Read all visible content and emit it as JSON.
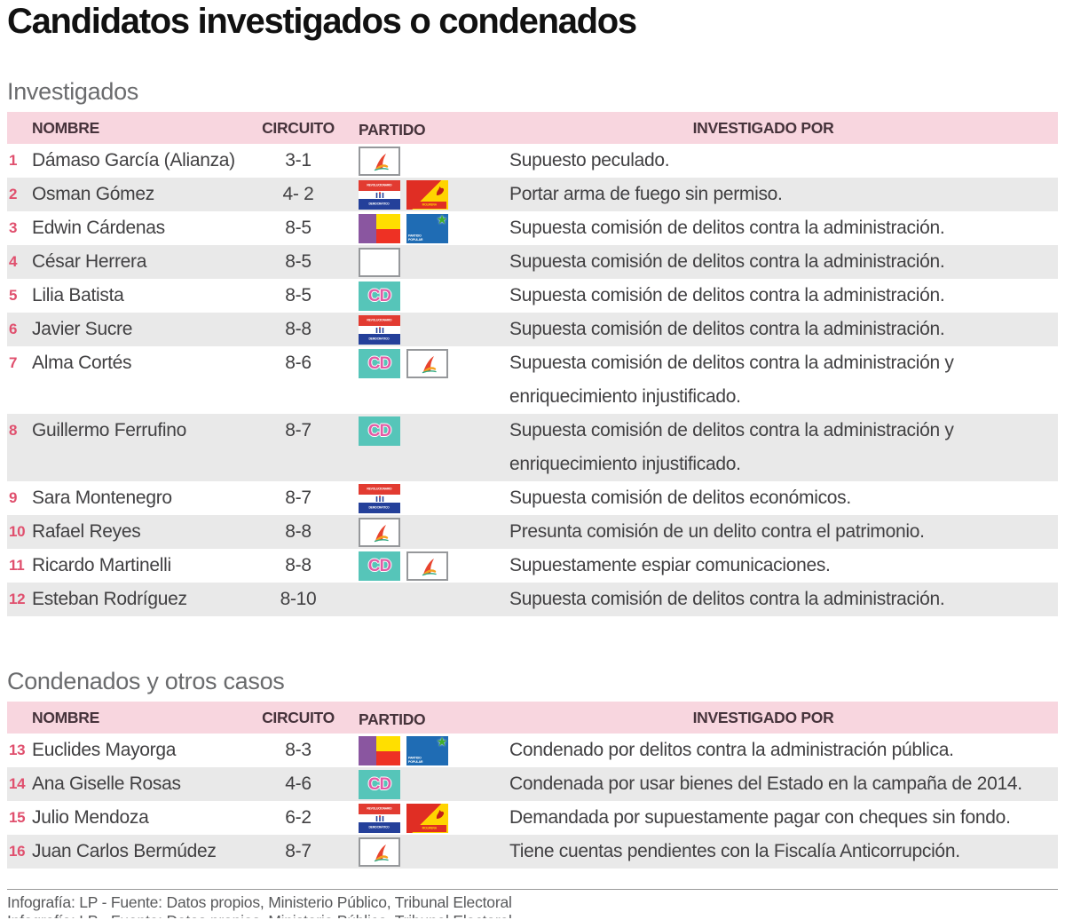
{
  "title": "Candidatos investigados o condenados",
  "columns": [
    "NOMBRE",
    "CIRCUITO",
    "PARTIDO",
    "INVESTIGADO POR"
  ],
  "colors": {
    "header_bar_pink": "#f8d6df",
    "row_stripe_gray": "#e9e9e9",
    "row_number_red": "#e0506e",
    "header_text": "#46333b",
    "body_text": "#414042",
    "section_label_gray": "#6a6b6d",
    "title_black": "#111111",
    "footer_gray": "#58595b"
  },
  "parties": {
    "alianza": {
      "name": "Alianza",
      "bg": "#ffffff",
      "border": "#96989b",
      "figure_red": "#e8432e",
      "figure_orange": "#f5a11f",
      "figure_green": "#2aa87e"
    },
    "prd": {
      "name": "PRD",
      "top_label": "REVOLUCIONARIO",
      "bottom_label": "DEMOCRÁTICO",
      "red": "#e23b31",
      "blue": "#24409a"
    },
    "molirena": {
      "name": "MOLIRENA",
      "label": "MOLIRENA",
      "red": "#e02e24",
      "yellow": "#ffd400",
      "rooster": "#c21f17"
    },
    "cd": {
      "name": "Cambio Democrático",
      "label": "CD",
      "bg": "#56c5b9",
      "letters": "#e35ba4"
    },
    "panamenista": {
      "name": "Panameñista",
      "purple": "#8a56a0",
      "yellow": "#ffdf00",
      "red": "#ee3124"
    },
    "popular": {
      "name": "Partido Popular",
      "label": "PARTIDO POPULAR",
      "bg": "#1f6cb4",
      "star_glyph": "★",
      "star_color": "#3fae2a"
    },
    "blank": {
      "name": "En blanco",
      "bg": "#ffffff",
      "border": "#96989b"
    }
  },
  "sections": [
    {
      "label": "Investigados",
      "rows": [
        {
          "num": "1",
          "name": "Dámaso García (Alianza)",
          "circuit": "3-1",
          "parties": [
            "alianza"
          ],
          "reason": "Supuesto peculado."
        },
        {
          "num": "2",
          "name": "Osman Gómez",
          "circuit": "4- 2",
          "parties": [
            "prd",
            "molirena"
          ],
          "reason": "Portar arma de fuego sin permiso."
        },
        {
          "num": "3",
          "name": "Edwin Cárdenas",
          "circuit": "8-5",
          "parties": [
            "panamenista",
            "popular"
          ],
          "reason": "Supuesta comisión de delitos contra la administración."
        },
        {
          "num": "4",
          "name": "César Herrera",
          "circuit": "8-5",
          "parties": [
            "blank"
          ],
          "reason": "Supuesta comisión de delitos contra la administración."
        },
        {
          "num": "5",
          "name": "Lilia Batista",
          "circuit": "8-5",
          "parties": [
            "cd"
          ],
          "reason": "Supuesta comisión de delitos contra la administración."
        },
        {
          "num": "6",
          "name": "Javier Sucre",
          "circuit": "8-8",
          "parties": [
            "prd"
          ],
          "reason": "Supuesta comisión de delitos contra la administración."
        },
        {
          "num": "7",
          "name": "Alma Cortés",
          "circuit": "8-6",
          "parties": [
            "cd",
            "alianza"
          ],
          "reason": "Supuesta comisión de delitos contra la administración y enriquecimiento injustificado."
        },
        {
          "num": "8",
          "name": "Guillermo Ferrufino",
          "circuit": "8-7",
          "parties": [
            "cd"
          ],
          "reason": "Supuesta comisión de delitos contra la administración y enriquecimiento injustificado."
        },
        {
          "num": "9",
          "name": "Sara Montenegro",
          "circuit": "8-7",
          "parties": [
            "prd"
          ],
          "reason": "Supuesta comisión de delitos económicos."
        },
        {
          "num": "10",
          "name": "Rafael Reyes",
          "circuit": "8-8",
          "parties": [
            "alianza"
          ],
          "reason": "Presunta comisión de un delito contra el patrimonio."
        },
        {
          "num": "11",
          "name": "Ricardo Martinelli",
          "circuit": "8-8",
          "parties": [
            "cd",
            "alianza"
          ],
          "reason": "Supuestamente espiar comunicaciones."
        },
        {
          "num": "12",
          "name": "Esteban Rodríguez",
          "circuit": "8-10",
          "parties": [],
          "reason": "Supuesta comisión de delitos contra la administración."
        }
      ]
    },
    {
      "label": "Condenados y otros casos",
      "rows": [
        {
          "num": "13",
          "name": "Euclides Mayorga",
          "circuit": "8-3",
          "parties": [
            "panamenista",
            "popular"
          ],
          "reason": "Condenado por delitos contra la administración pública."
        },
        {
          "num": "14",
          "name": "Ana Giselle Rosas",
          "circuit": "4-6",
          "parties": [
            "cd"
          ],
          "reason": "Condenada por usar bienes del Estado en la campaña de 2014."
        },
        {
          "num": "15",
          "name": "Julio Mendoza",
          "circuit": "6-2",
          "parties": [
            "prd",
            "molirena"
          ],
          "reason": "Demandada por supuestamente pagar con cheques sin fondo."
        },
        {
          "num": "16",
          "name": "Juan Carlos Bermúdez",
          "circuit": "8-7",
          "parties": [
            "alianza"
          ],
          "reason": "Tiene cuentas pendientes con la Fiscalía Anticorrupción."
        }
      ]
    }
  ],
  "footer": {
    "text": "Infografía: LP  - Fuente: Datos propios, Ministerio Público, Tribunal Electoral"
  },
  "chart_data": [
    {
      "type": "table",
      "title": "Investigados",
      "columns": [
        "#",
        "NOMBRE",
        "CIRCUITO",
        "PARTIDO",
        "INVESTIGADO POR"
      ],
      "rows": [
        [
          "1",
          "Dámaso García (Alianza)",
          "3-1",
          "Alianza",
          "Supuesto peculado."
        ],
        [
          "2",
          "Osman Gómez",
          "4- 2",
          "PRD + MOLIRENA",
          "Portar arma de fuego sin permiso."
        ],
        [
          "3",
          "Edwin Cárdenas",
          "8-5",
          "Panameñista + Partido Popular",
          "Supuesta comisión de delitos contra la administración."
        ],
        [
          "4",
          "César Herrera",
          "8-5",
          "En blanco",
          "Supuesta comisión de delitos contra la administración."
        ],
        [
          "5",
          "Lilia Batista",
          "8-5",
          "Cambio Democrático",
          "Supuesta comisión de delitos contra la administración."
        ],
        [
          "6",
          "Javier Sucre",
          "8-8",
          "PRD",
          "Supuesta comisión de delitos contra la administración."
        ],
        [
          "7",
          "Alma Cortés",
          "8-6",
          "Cambio Democrático + Alianza",
          "Supuesta comisión de delitos contra la administración y enriquecimiento injustificado."
        ],
        [
          "8",
          "Guillermo Ferrufino",
          "8-7",
          "Cambio Democrático",
          "Supuesta comisión de delitos contra la administración y enriquecimiento injustificado."
        ],
        [
          "9",
          "Sara Montenegro",
          "8-7",
          "PRD",
          "Supuesta comisión de delitos económicos."
        ],
        [
          "10",
          "Rafael Reyes",
          "8-8",
          "Alianza",
          "Presunta comisión de un delito contra el patrimonio."
        ],
        [
          "11",
          "Ricardo Martinelli",
          "8-8",
          "Cambio Democrático + Alianza",
          "Supuestamente espiar comunicaciones."
        ],
        [
          "12",
          "Esteban Rodríguez",
          "8-10",
          "",
          "Supuesta comisión de delitos contra la administración."
        ]
      ]
    },
    {
      "type": "table",
      "title": "Condenados y otros casos",
      "columns": [
        "#",
        "NOMBRE",
        "CIRCUITO",
        "PARTIDO",
        "INVESTIGADO POR"
      ],
      "rows": [
        [
          "13",
          "Euclides Mayorga",
          "8-3",
          "Panameñista + Partido Popular",
          "Condenado por delitos contra la administración pública."
        ],
        [
          "14",
          "Ana Giselle Rosas",
          "4-6",
          "Cambio Democrático",
          "Condenada por usar bienes del Estado en la campaña de 2014."
        ],
        [
          "15",
          "Julio Mendoza",
          "6-2",
          "PRD + MOLIRENA",
          "Demandada por supuestamente pagar con cheques sin fondo."
        ],
        [
          "16",
          "Juan Carlos Bermúdez",
          "8-7",
          "Alianza",
          "Tiene cuentas pendientes con la Fiscalía Anticorrupción."
        ]
      ]
    }
  ]
}
